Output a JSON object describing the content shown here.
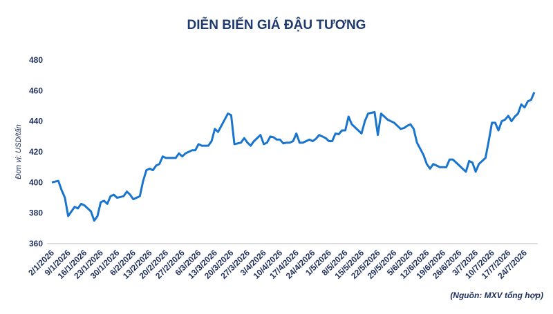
{
  "chart_data": {
    "type": "line",
    "title": "DIỄN BIẾN GIÁ ĐẬU TƯƠNG",
    "y_label": "Đơn vị: USD/tấn",
    "source": "(Nguồn: MXV tổng hợp)",
    "color": "#1874cd",
    "grid": false,
    "ylim": [
      360,
      480
    ],
    "yticks": [
      360,
      380,
      400,
      420,
      440,
      460,
      480
    ],
    "categories": [
      "2/1/2026",
      null,
      null,
      null,
      null,
      "9/1/2026",
      null,
      null,
      null,
      null,
      "16/1/2026",
      null,
      null,
      null,
      null,
      "23/1/2026",
      null,
      null,
      null,
      null,
      "30/1/2026",
      null,
      null,
      null,
      null,
      "6/2/2026",
      null,
      null,
      null,
      null,
      "13/2/2026",
      null,
      null,
      null,
      null,
      "20/2/2026",
      null,
      null,
      null,
      null,
      "27/2/2026",
      null,
      null,
      null,
      null,
      "6/3/2026",
      null,
      null,
      null,
      null,
      "13/3/2026",
      null,
      null,
      null,
      null,
      "20/3/2026",
      null,
      null,
      null,
      null,
      "27/3/2026",
      null,
      null,
      null,
      null,
      "3/4/2026",
      null,
      null,
      null,
      null,
      "10/4/2026",
      null,
      null,
      null,
      null,
      "17/4/2026",
      null,
      null,
      null,
      null,
      "24/4/2026",
      null,
      null,
      null,
      null,
      "1/5/2026",
      null,
      null,
      null,
      null,
      "8/5/2026",
      null,
      null,
      null,
      null,
      "15/5/2026",
      null,
      null,
      null,
      null,
      "22/5/2026",
      null,
      null,
      null,
      null,
      "29/5/2026",
      null,
      null,
      null,
      null,
      "5/6/2026",
      null,
      null,
      null,
      null,
      "12/6/2026",
      null,
      null,
      null,
      null,
      "19/6/2026",
      null,
      null,
      null,
      null,
      "26/6/2026",
      null,
      null,
      null,
      null,
      "3/7/2026",
      null,
      null,
      null,
      null,
      "10/7/2026",
      null,
      null,
      null,
      null,
      "17/7/2026",
      null,
      null,
      null,
      null,
      "24/7/2026",
      null,
      null,
      null
    ],
    "values": [
      400,
      400.5,
      401,
      395,
      390,
      378,
      381,
      384,
      383,
      386,
      385,
      383,
      381,
      375,
      378,
      387,
      388,
      386,
      391,
      392,
      390,
      390.5,
      391,
      394,
      392,
      389,
      390,
      391,
      401,
      408,
      409,
      408,
      411,
      412,
      417,
      416,
      416,
      416,
      416,
      419,
      417,
      419,
      420,
      421,
      421,
      425,
      424,
      424,
      424,
      427,
      435,
      433,
      437,
      441,
      445,
      444,
      425,
      425.5,
      426,
      429,
      426,
      424,
      427,
      429,
      431,
      425,
      426,
      430,
      429.5,
      428,
      428,
      425.5,
      426,
      426,
      427,
      432,
      426,
      426,
      427,
      428,
      427,
      428.5,
      431,
      430,
      429,
      427,
      427,
      432,
      431.5,
      434,
      434,
      443,
      438,
      436,
      434,
      432,
      440,
      445,
      445.5,
      446,
      431,
      445,
      443,
      441,
      440,
      439,
      437,
      435,
      435.5,
      437,
      438,
      435,
      426,
      422,
      418,
      412,
      409,
      412,
      411,
      410,
      410,
      410,
      415,
      415,
      413,
      411,
      409,
      407,
      414,
      413,
      407,
      412,
      414,
      416,
      427,
      439,
      439,
      434,
      440,
      441,
      443.5,
      440,
      443,
      445,
      451,
      449,
      453,
      454,
      459
    ]
  }
}
